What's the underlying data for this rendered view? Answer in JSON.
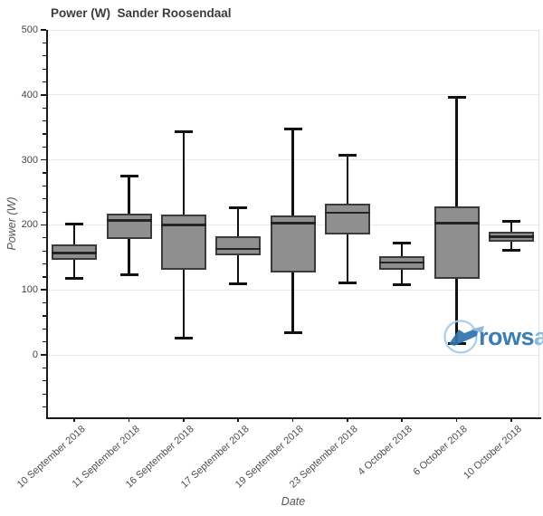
{
  "title": "Power (W)  Sander Roosendaal",
  "axes": {
    "y": {
      "label": "Power (W)",
      "ticks": [
        0,
        100,
        200,
        300,
        400,
        500
      ],
      "minor_step": 20,
      "range": [
        -96,
        500
      ]
    },
    "x": {
      "label": "Date"
    }
  },
  "chart_data": {
    "type": "box",
    "title": "Power (W)  Sander Roosendaal",
    "xlabel": "Date",
    "ylabel": "Power (W)",
    "ylim": [
      -96,
      500
    ],
    "grid": true,
    "categories": [
      "10 September 2018",
      "11 September 2018",
      "16 September 2018",
      "17 September 2018",
      "19 September 2018",
      "23 September 2018",
      "4 October 2018",
      "6 October 2018",
      "10 October 2018"
    ],
    "series": [
      {
        "name": "Power (W)",
        "boxes": [
          {
            "low": 118,
            "q1": 147,
            "median": 157,
            "q3": 170,
            "high": 201
          },
          {
            "low": 123,
            "q1": 179,
            "median": 207,
            "q3": 218,
            "high": 275
          },
          {
            "low": 26,
            "q1": 131,
            "median": 200,
            "q3": 216,
            "high": 343
          },
          {
            "low": 110,
            "q1": 153,
            "median": 163,
            "q3": 182,
            "high": 227
          },
          {
            "low": 34,
            "q1": 127,
            "median": 203,
            "q3": 215,
            "high": 347
          },
          {
            "low": 111,
            "q1": 185,
            "median": 219,
            "q3": 233,
            "high": 307
          },
          {
            "low": 108,
            "q1": 131,
            "median": 142,
            "q3": 152,
            "high": 172
          },
          {
            "low": 17,
            "q1": 117,
            "median": 203,
            "q3": 228,
            "high": 397
          },
          {
            "low": 161,
            "q1": 174,
            "median": 182,
            "q3": 190,
            "high": 205
          }
        ]
      }
    ]
  },
  "watermark": {
    "text_dark": "rows",
    "text_light": "andall"
  },
  "colors": {
    "box_fill": "#8f8f8f",
    "box_border": "#3b3b3b",
    "median": "#242424",
    "whisker": "#111111",
    "grid": "#e8e8e8",
    "plot_border": "#e2e2e2",
    "axis": "#1a1a1a",
    "tick_text": "#444444",
    "x_label_text": "#4d4d4d",
    "title_text": "#3b3b3b",
    "logo_dark": "#2f74ae",
    "logo_light": "#85b6dc",
    "logo_circle": "#a3c9e7"
  }
}
